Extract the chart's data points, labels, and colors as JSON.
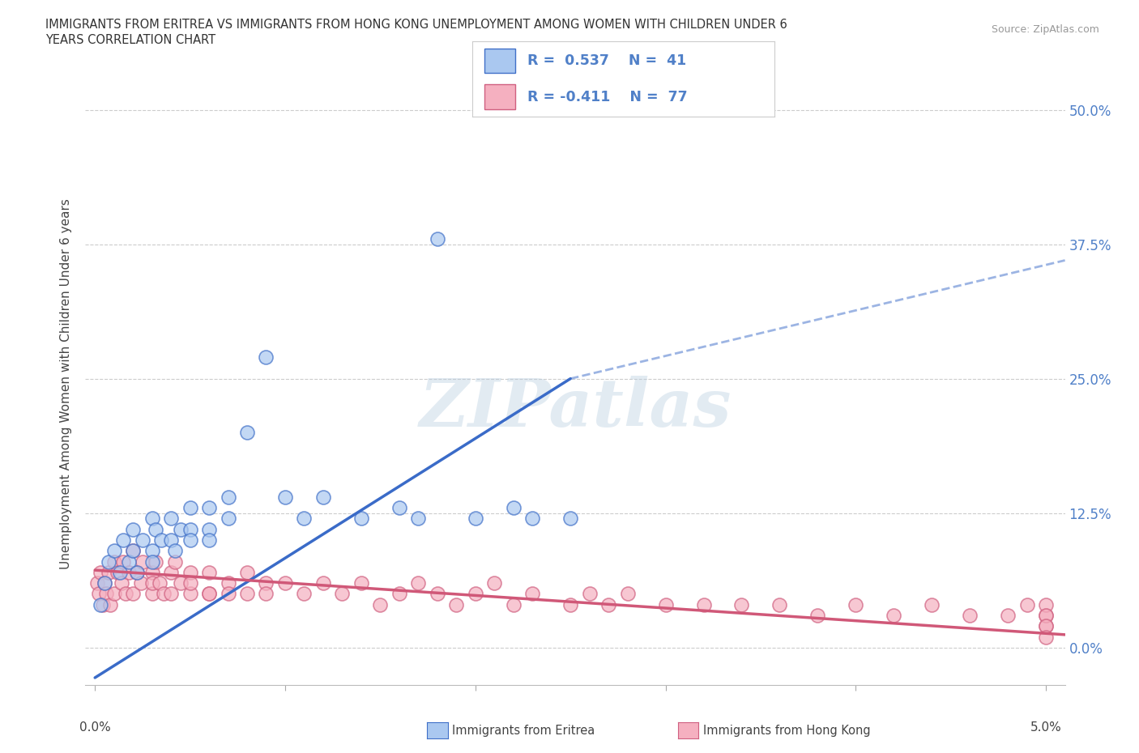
{
  "title_line1": "IMMIGRANTS FROM ERITREA VS IMMIGRANTS FROM HONG KONG UNEMPLOYMENT AMONG WOMEN WITH CHILDREN UNDER 6",
  "title_line2": "YEARS CORRELATION CHART",
  "source": "Source: ZipAtlas.com",
  "ylabel": "Unemployment Among Women with Children Under 6 years",
  "ytick_labels": [
    "0.0%",
    "12.5%",
    "25.0%",
    "37.5%",
    "50.0%"
  ],
  "ytick_values": [
    0.0,
    0.125,
    0.25,
    0.375,
    0.5
  ],
  "xlim": [
    -0.0005,
    0.051
  ],
  "ylim": [
    -0.035,
    0.525
  ],
  "eritrea_R": 0.537,
  "eritrea_N": 41,
  "hk_R": -0.411,
  "hk_N": 77,
  "eritrea_fill": "#aac8f0",
  "eritrea_edge": "#4070c8",
  "eritrea_line": "#3a6bc8",
  "hk_fill": "#f5b0c0",
  "hk_edge": "#d06080",
  "hk_line": "#d05878",
  "legend_eritrea": "Immigrants from Eritrea",
  "legend_hk": "Immigrants from Hong Kong",
  "watermark": "ZIPatlas",
  "bg": "#ffffff",
  "grid_color": "#cccccc",
  "right_tick_color": "#5080c8",
  "eritrea_x": [
    0.0003,
    0.0005,
    0.0007,
    0.001,
    0.0013,
    0.0015,
    0.0018,
    0.002,
    0.002,
    0.0022,
    0.0025,
    0.003,
    0.003,
    0.003,
    0.0032,
    0.0035,
    0.004,
    0.004,
    0.0042,
    0.0045,
    0.005,
    0.005,
    0.005,
    0.006,
    0.006,
    0.006,
    0.007,
    0.007,
    0.008,
    0.009,
    0.01,
    0.011,
    0.012,
    0.014,
    0.016,
    0.017,
    0.018,
    0.02,
    0.022,
    0.023,
    0.025
  ],
  "eritrea_y": [
    0.04,
    0.06,
    0.08,
    0.09,
    0.07,
    0.1,
    0.08,
    0.11,
    0.09,
    0.07,
    0.1,
    0.12,
    0.09,
    0.08,
    0.11,
    0.1,
    0.12,
    0.1,
    0.09,
    0.11,
    0.13,
    0.11,
    0.1,
    0.13,
    0.11,
    0.1,
    0.14,
    0.12,
    0.2,
    0.27,
    0.14,
    0.12,
    0.14,
    0.12,
    0.13,
    0.12,
    0.38,
    0.12,
    0.13,
    0.12,
    0.12
  ],
  "hk_x": [
    0.0001,
    0.0002,
    0.0003,
    0.0004,
    0.0005,
    0.0006,
    0.0007,
    0.0008,
    0.001,
    0.001,
    0.0012,
    0.0014,
    0.0015,
    0.0016,
    0.0018,
    0.002,
    0.002,
    0.0022,
    0.0024,
    0.0025,
    0.003,
    0.003,
    0.003,
    0.0032,
    0.0034,
    0.0036,
    0.004,
    0.004,
    0.0042,
    0.0045,
    0.005,
    0.005,
    0.005,
    0.006,
    0.006,
    0.006,
    0.007,
    0.007,
    0.008,
    0.008,
    0.009,
    0.009,
    0.01,
    0.011,
    0.012,
    0.013,
    0.014,
    0.015,
    0.016,
    0.017,
    0.018,
    0.019,
    0.02,
    0.021,
    0.022,
    0.023,
    0.025,
    0.026,
    0.027,
    0.028,
    0.03,
    0.032,
    0.034,
    0.036,
    0.038,
    0.04,
    0.042,
    0.044,
    0.046,
    0.048,
    0.049,
    0.05,
    0.05,
    0.05,
    0.05,
    0.05,
    0.05
  ],
  "hk_y": [
    0.06,
    0.05,
    0.07,
    0.04,
    0.06,
    0.05,
    0.07,
    0.04,
    0.08,
    0.05,
    0.07,
    0.06,
    0.08,
    0.05,
    0.07,
    0.09,
    0.05,
    0.07,
    0.06,
    0.08,
    0.07,
    0.05,
    0.06,
    0.08,
    0.06,
    0.05,
    0.07,
    0.05,
    0.08,
    0.06,
    0.07,
    0.05,
    0.06,
    0.05,
    0.07,
    0.05,
    0.06,
    0.05,
    0.07,
    0.05,
    0.06,
    0.05,
    0.06,
    0.05,
    0.06,
    0.05,
    0.06,
    0.04,
    0.05,
    0.06,
    0.05,
    0.04,
    0.05,
    0.06,
    0.04,
    0.05,
    0.04,
    0.05,
    0.04,
    0.05,
    0.04,
    0.04,
    0.04,
    0.04,
    0.03,
    0.04,
    0.03,
    0.04,
    0.03,
    0.03,
    0.04,
    0.03,
    0.04,
    0.02,
    0.03,
    0.02,
    0.01
  ],
  "er_line_x0": 0.0,
  "er_line_y0": -0.028,
  "er_line_x1": 0.025,
  "er_line_y1": 0.25,
  "er_line_solid_end": 0.025,
  "er_line_x2": 0.051,
  "er_line_y2": 0.36,
  "hk_line_x0": 0.0,
  "hk_line_y0": 0.072,
  "hk_line_x1": 0.051,
  "hk_line_y1": 0.012
}
